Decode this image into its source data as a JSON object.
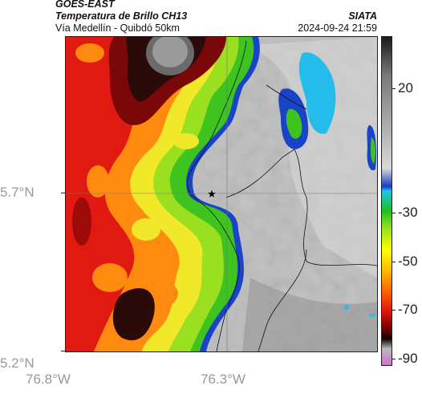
{
  "header": {
    "satellite": "GOES-EAST",
    "product": "Temperatura de Brillo CH13",
    "source": "SIATA",
    "route": "Vía Medellín - Quibdó 50km",
    "timestamp": "2024-09-24 21:59"
  },
  "axes": {
    "lat_labels": [
      "5.7°N",
      "5.2°N"
    ],
    "lon_labels": [
      "76.8°W",
      "76.3°W"
    ]
  },
  "colorbar": {
    "labels": [
      "20",
      "-30",
      "-50",
      "-70",
      "-90"
    ],
    "colors": [
      "#1a1a1a",
      "#7a7a7a",
      "#d8d8d8",
      "#1a3cc8",
      "#21c4e8",
      "#1fbf1f",
      "#8fe020",
      "#ffff00",
      "#ffb000",
      "#ff5a00",
      "#e01010",
      "#6e0000",
      "#100000",
      "#b9b9b9",
      "#d070d0"
    ]
  },
  "map": {
    "marker": "star-icon",
    "colors": {
      "cold_cloud_red": "#e01a10",
      "cold_cloud_orange": "#ff7a10",
      "cold_cloud_yellow": "#f2e82a",
      "cold_cloud_green": "#3fc41f",
      "cold_cloud_blue": "#1a44c8",
      "cyan": "#24bcea",
      "clear_gray": "#b8b8b8",
      "dark_core": "#2b0a0a"
    }
  }
}
